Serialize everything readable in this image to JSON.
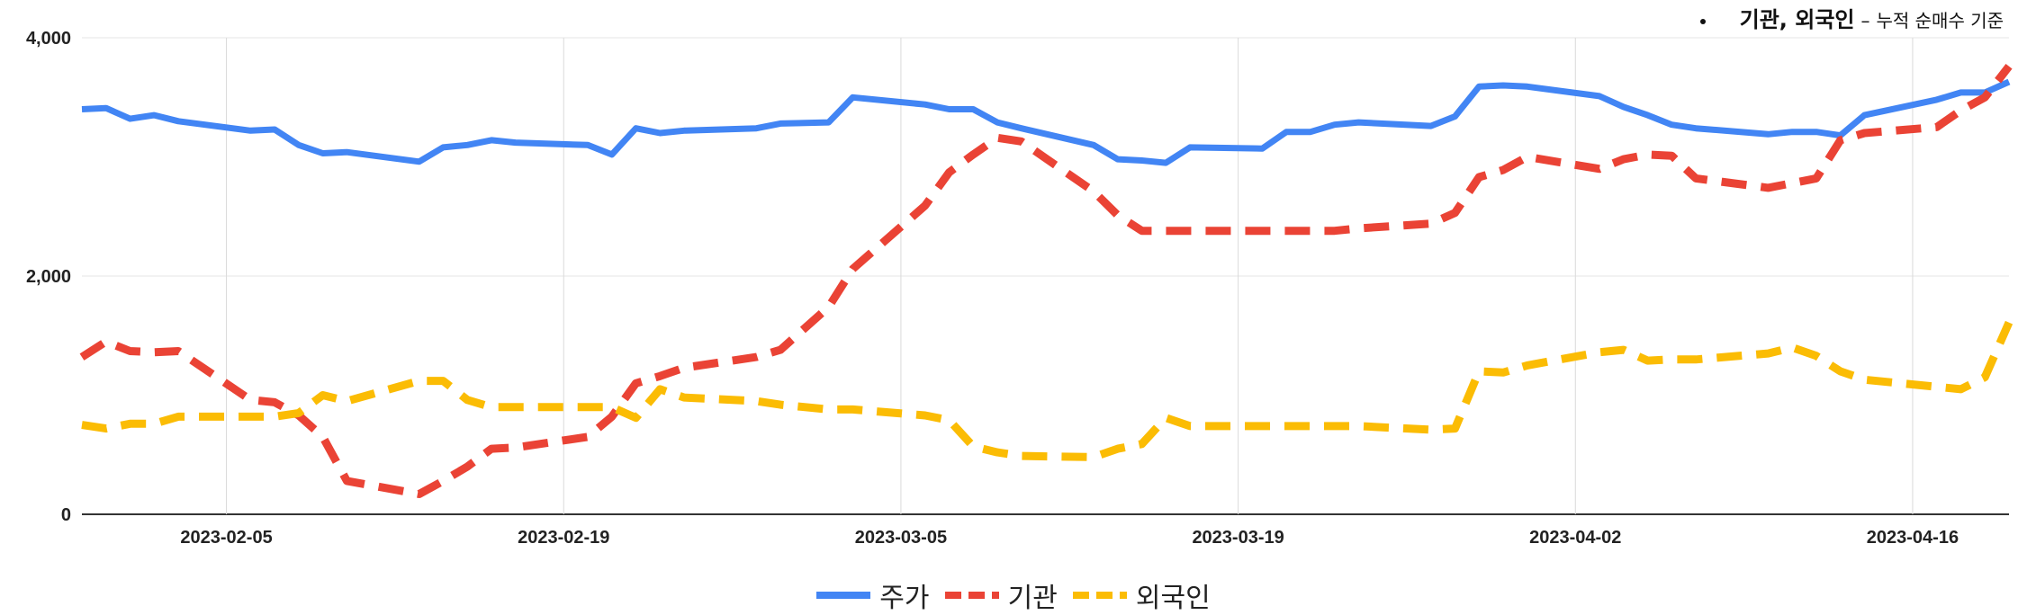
{
  "note": {
    "bullet": "•",
    "strong": "기관, 외국인",
    "dash": "–",
    "rest": "누적 순매수 기준"
  },
  "chart_data": {
    "type": "line",
    "x_ticks": [
      "2023-02-05",
      "2023-02-19",
      "2023-03-05",
      "2023-03-19",
      "2023-04-02",
      "2023-04-16"
    ],
    "y_ticks": [
      "0",
      "2,000",
      "4,000"
    ],
    "ylim": [
      0,
      4000
    ],
    "grid": true,
    "legend": "bottom",
    "x": [
      "2023-01-30",
      "2023-01-31",
      "2023-02-01",
      "2023-02-02",
      "2023-02-03",
      "2023-02-06",
      "2023-02-07",
      "2023-02-08",
      "2023-02-09",
      "2023-02-10",
      "2023-02-13",
      "2023-02-14",
      "2023-02-15",
      "2023-02-16",
      "2023-02-17",
      "2023-02-20",
      "2023-02-21",
      "2023-02-22",
      "2023-02-23",
      "2023-02-24",
      "2023-02-27",
      "2023-02-28",
      "2023-03-02",
      "2023-03-03",
      "2023-03-06",
      "2023-03-07",
      "2023-03-08",
      "2023-03-09",
      "2023-03-10",
      "2023-03-13",
      "2023-03-14",
      "2023-03-15",
      "2023-03-16",
      "2023-03-17",
      "2023-03-20",
      "2023-03-21",
      "2023-03-22",
      "2023-03-23",
      "2023-03-24",
      "2023-03-27",
      "2023-03-28",
      "2023-03-29",
      "2023-03-30",
      "2023-03-31",
      "2023-04-03",
      "2023-04-04",
      "2023-04-05",
      "2023-04-06",
      "2023-04-07",
      "2023-04-10",
      "2023-04-11",
      "2023-04-12",
      "2023-04-13",
      "2023-04-14",
      "2023-04-17",
      "2023-04-18",
      "2023-04-19",
      "2023-04-20"
    ],
    "series": [
      {
        "name": "주가",
        "color": "#4285F4",
        "dash": "solid",
        "values": [
          3400,
          3410,
          3320,
          3350,
          3300,
          3220,
          3230,
          3100,
          3030,
          3040,
          2960,
          3080,
          3100,
          3140,
          3120,
          3100,
          3020,
          3240,
          3200,
          3220,
          3240,
          3280,
          3290,
          3500,
          3440,
          3400,
          3400,
          3290,
          3240,
          3100,
          2980,
          2970,
          2950,
          3080,
          3070,
          3210,
          3210,
          3270,
          3290,
          3260,
          3340,
          3590,
          3600,
          3590,
          3510,
          3420,
          3350,
          3270,
          3240,
          3190,
          3210,
          3210,
          3180,
          3350,
          3480,
          3540,
          3540,
          3630
        ]
      },
      {
        "name": "기관",
        "color": "#EA4335",
        "dash": "dashed",
        "values": [
          1320,
          1450,
          1370,
          1360,
          1370,
          960,
          940,
          830,
          650,
          280,
          170,
          280,
          400,
          550,
          560,
          650,
          820,
          1100,
          1160,
          1230,
          1320,
          1380,
          1740,
          2060,
          2590,
          2870,
          3020,
          3160,
          3130,
          2710,
          2510,
          2380,
          2380,
          2380,
          2380,
          2380,
          2380,
          2380,
          2400,
          2440,
          2530,
          2830,
          2890,
          3000,
          2900,
          2980,
          3020,
          3010,
          2820,
          2740,
          2780,
          2820,
          3140,
          3200,
          3250,
          3390,
          3500,
          3760
        ]
      },
      {
        "name": "외국인",
        "color": "#FBBC04",
        "dash": "dashed",
        "values": [
          750,
          720,
          760,
          760,
          820,
          820,
          820,
          850,
          1000,
          950,
          1120,
          1120,
          960,
          900,
          900,
          900,
          900,
          810,
          1050,
          980,
          950,
          920,
          880,
          880,
          830,
          790,
          570,
          520,
          490,
          480,
          550,
          590,
          810,
          740,
          740,
          740,
          740,
          740,
          740,
          710,
          720,
          1200,
          1190,
          1250,
          1360,
          1380,
          1290,
          1300,
          1300,
          1350,
          1400,
          1330,
          1200,
          1130,
          1070,
          1050,
          1150,
          1610
        ]
      }
    ]
  }
}
